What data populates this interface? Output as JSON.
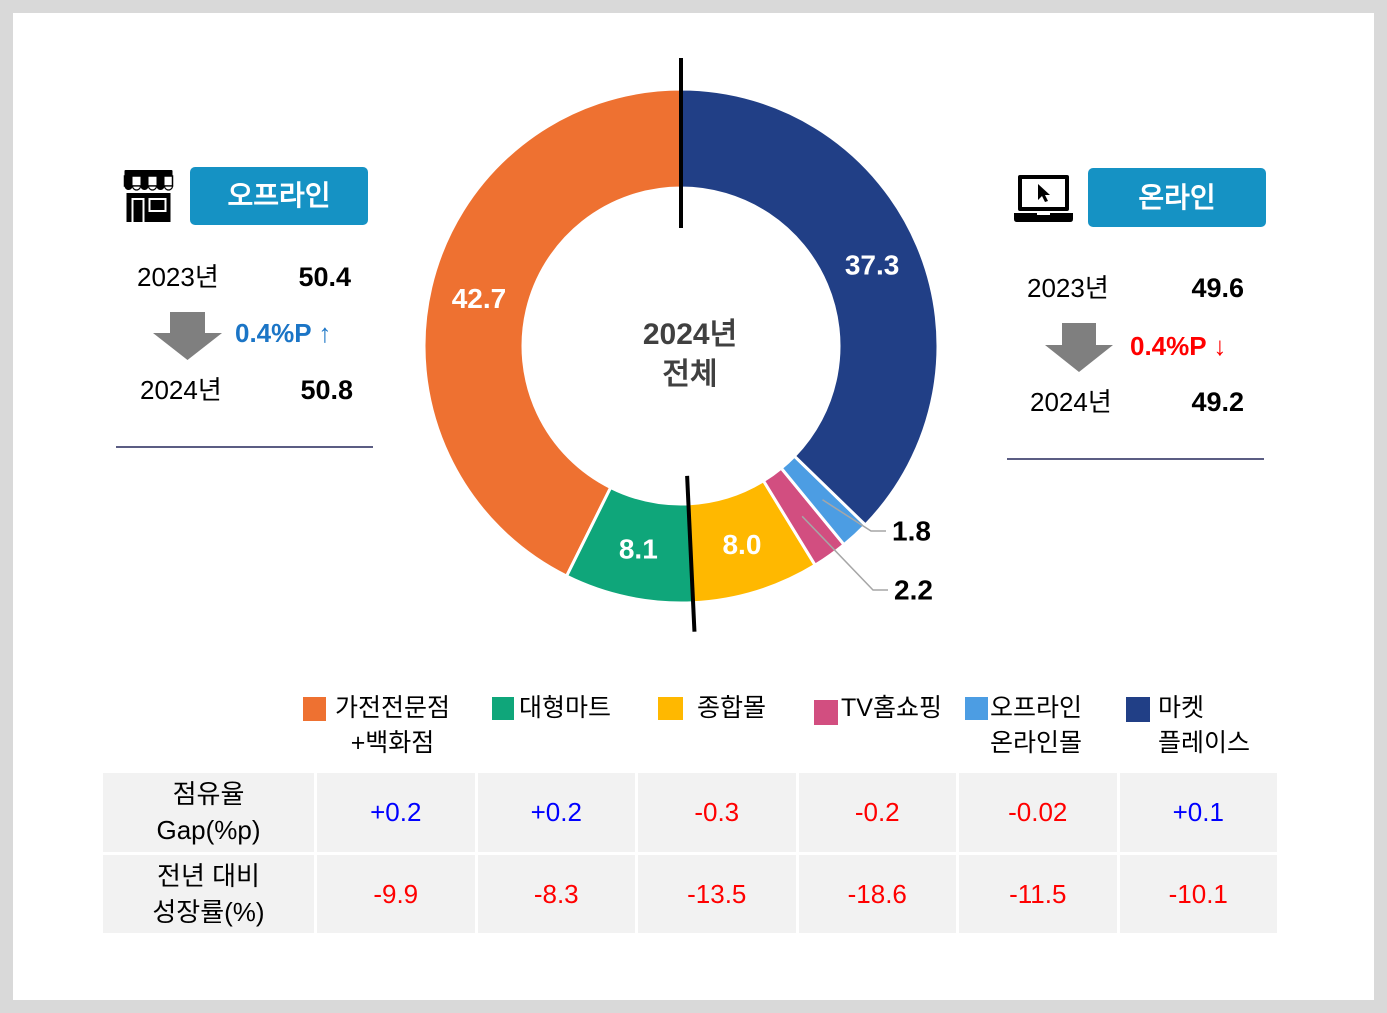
{
  "offline": {
    "badge_label": "오프라인",
    "icon": "storefront-icon",
    "year_a_label": "2023년",
    "year_a_value": "50.4",
    "change": "0.4%P ↑",
    "change_color": "#1b75c6",
    "year_b_label": "2024년",
    "year_b_value": "50.8"
  },
  "online": {
    "badge_label": "온라인",
    "icon": "laptop-icon",
    "year_a_label": "2023년",
    "year_a_value": "49.6",
    "change": "0.4%P ↓",
    "change_color": "#ff0000",
    "year_b_label": "2024년",
    "year_b_value": "49.2"
  },
  "colors": {
    "badge": "#1592c4",
    "arrow": "#7f7f7f",
    "divider": "#5b5d83",
    "center_label": "#404040",
    "leader_line": "#a6a6a6",
    "group_divider": "#000000",
    "table_positive": "#0000ff",
    "table_negative": "#ff0000",
    "table_cell_bg": "#f2f2f2"
  },
  "chart_data": {
    "type": "pie",
    "donut": true,
    "center_label": [
      "2024년",
      "전체"
    ],
    "legend_position": "bottom",
    "slices": [
      {
        "label": [
          "가전전문점",
          "+백화점"
        ],
        "value": 42.7,
        "value_label": "42.7",
        "color": "#ee7131"
      },
      {
        "label": [
          "대형마트"
        ],
        "value": 8.1,
        "value_label": "8.1",
        "color": "#0fa67a"
      },
      {
        "label": [
          "종합몰"
        ],
        "value": 8.0,
        "value_label": "8.0",
        "color": "#ffb800"
      },
      {
        "label": [
          "TV홈쇼핑"
        ],
        "value": 2.2,
        "value_label": "2.2",
        "color": "#d24e80"
      },
      {
        "label": [
          "오프라인",
          "온라인몰"
        ],
        "value": 1.8,
        "value_label": "1.8",
        "color": "#4c9de3"
      },
      {
        "label": [
          "마켓",
          "플레이스"
        ],
        "value": 37.3,
        "value_label": "37.3",
        "color": "#213f86"
      }
    ]
  },
  "table": {
    "row_headers": [
      [
        "점유율",
        "Gap(%p)"
      ],
      [
        "전년 대비",
        "성장률(%)"
      ]
    ],
    "rows": [
      [
        "+0.2",
        "+0.2",
        "-0.3",
        "-0.2",
        "-0.02",
        "+0.1"
      ],
      [
        "-9.9",
        "-8.3",
        "-13.5",
        "-18.6",
        "-11.5",
        "-10.1"
      ]
    ]
  }
}
